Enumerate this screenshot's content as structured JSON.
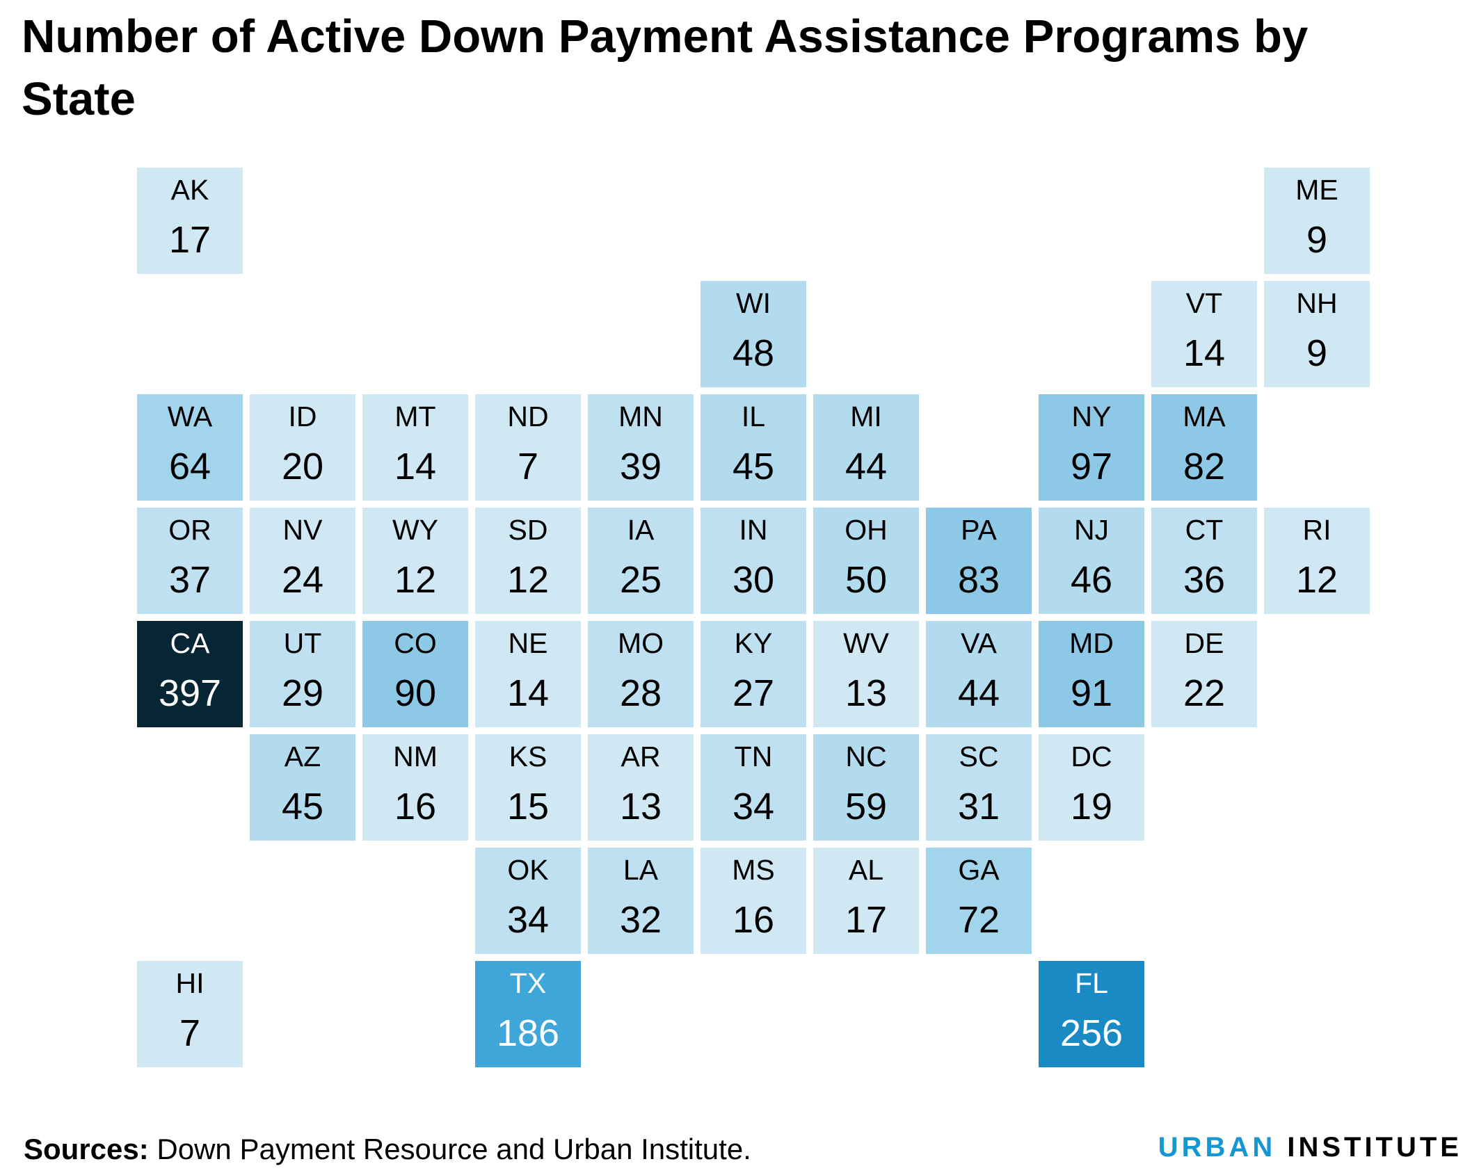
{
  "title": "Number of Active Down Payment Assistance Programs by State",
  "footer": {
    "label": "Sources:",
    "text": "Down Payment Resource and Urban Institute."
  },
  "logo": {
    "word1": "URBAN",
    "word2": "INSTITUTE"
  },
  "colors": {
    "scale": [
      "#cfe8f3",
      "#a2d4ec",
      "#73bfe2",
      "#46abdb",
      "#1696d2",
      "#12719e",
      "#0a4c6a",
      "#062635"
    ],
    "text_dark": "#000000",
    "text_light": "#ffffff",
    "logo_accent": "#1696d2"
  },
  "states": [
    {
      "abbr": "AK",
      "value": 17,
      "row": 0,
      "col": 0
    },
    {
      "abbr": "ME",
      "value": 9,
      "row": 0,
      "col": 10
    },
    {
      "abbr": "WI",
      "value": 48,
      "row": 1,
      "col": 5
    },
    {
      "abbr": "VT",
      "value": 14,
      "row": 1,
      "col": 9
    },
    {
      "abbr": "NH",
      "value": 9,
      "row": 1,
      "col": 10
    },
    {
      "abbr": "WA",
      "value": 64,
      "row": 2,
      "col": 0
    },
    {
      "abbr": "ID",
      "value": 20,
      "row": 2,
      "col": 1
    },
    {
      "abbr": "MT",
      "value": 14,
      "row": 2,
      "col": 2
    },
    {
      "abbr": "ND",
      "value": 7,
      "row": 2,
      "col": 3
    },
    {
      "abbr": "MN",
      "value": 39,
      "row": 2,
      "col": 4
    },
    {
      "abbr": "IL",
      "value": 45,
      "row": 2,
      "col": 5
    },
    {
      "abbr": "MI",
      "value": 44,
      "row": 2,
      "col": 6
    },
    {
      "abbr": "NY",
      "value": 97,
      "row": 2,
      "col": 8
    },
    {
      "abbr": "MA",
      "value": 82,
      "row": 2,
      "col": 9
    },
    {
      "abbr": "OR",
      "value": 37,
      "row": 3,
      "col": 0
    },
    {
      "abbr": "NV",
      "value": 24,
      "row": 3,
      "col": 1
    },
    {
      "abbr": "WY",
      "value": 12,
      "row": 3,
      "col": 2
    },
    {
      "abbr": "SD",
      "value": 12,
      "row": 3,
      "col": 3
    },
    {
      "abbr": "IA",
      "value": 25,
      "row": 3,
      "col": 4
    },
    {
      "abbr": "IN",
      "value": 30,
      "row": 3,
      "col": 5
    },
    {
      "abbr": "OH",
      "value": 50,
      "row": 3,
      "col": 6
    },
    {
      "abbr": "PA",
      "value": 83,
      "row": 3,
      "col": 7
    },
    {
      "abbr": "NJ",
      "value": 46,
      "row": 3,
      "col": 8
    },
    {
      "abbr": "CT",
      "value": 36,
      "row": 3,
      "col": 9
    },
    {
      "abbr": "RI",
      "value": 12,
      "row": 3,
      "col": 10
    },
    {
      "abbr": "CA",
      "value": 397,
      "row": 4,
      "col": 0
    },
    {
      "abbr": "UT",
      "value": 29,
      "row": 4,
      "col": 1
    },
    {
      "abbr": "CO",
      "value": 90,
      "row": 4,
      "col": 2
    },
    {
      "abbr": "NE",
      "value": 14,
      "row": 4,
      "col": 3
    },
    {
      "abbr": "MO",
      "value": 28,
      "row": 4,
      "col": 4
    },
    {
      "abbr": "KY",
      "value": 27,
      "row": 4,
      "col": 5
    },
    {
      "abbr": "WV",
      "value": 13,
      "row": 4,
      "col": 6
    },
    {
      "abbr": "VA",
      "value": 44,
      "row": 4,
      "col": 7
    },
    {
      "abbr": "MD",
      "value": 91,
      "row": 4,
      "col": 8
    },
    {
      "abbr": "DE",
      "value": 22,
      "row": 4,
      "col": 9
    },
    {
      "abbr": "AZ",
      "value": 45,
      "row": 5,
      "col": 1
    },
    {
      "abbr": "NM",
      "value": 16,
      "row": 5,
      "col": 2
    },
    {
      "abbr": "KS",
      "value": 15,
      "row": 5,
      "col": 3
    },
    {
      "abbr": "AR",
      "value": 13,
      "row": 5,
      "col": 4
    },
    {
      "abbr": "TN",
      "value": 34,
      "row": 5,
      "col": 5
    },
    {
      "abbr": "NC",
      "value": 59,
      "row": 5,
      "col": 6
    },
    {
      "abbr": "SC",
      "value": 31,
      "row": 5,
      "col": 7
    },
    {
      "abbr": "DC",
      "value": 19,
      "row": 5,
      "col": 8
    },
    {
      "abbr": "OK",
      "value": 34,
      "row": 6,
      "col": 3
    },
    {
      "abbr": "LA",
      "value": 32,
      "row": 6,
      "col": 4
    },
    {
      "abbr": "MS",
      "value": 16,
      "row": 6,
      "col": 5
    },
    {
      "abbr": "AL",
      "value": 17,
      "row": 6,
      "col": 6
    },
    {
      "abbr": "GA",
      "value": 72,
      "row": 6,
      "col": 7
    },
    {
      "abbr": "HI",
      "value": 7,
      "row": 7,
      "col": 0
    },
    {
      "abbr": "TX",
      "value": 186,
      "row": 7,
      "col": 3
    },
    {
      "abbr": "FL",
      "value": 256,
      "row": 7,
      "col": 8
    }
  ]
}
